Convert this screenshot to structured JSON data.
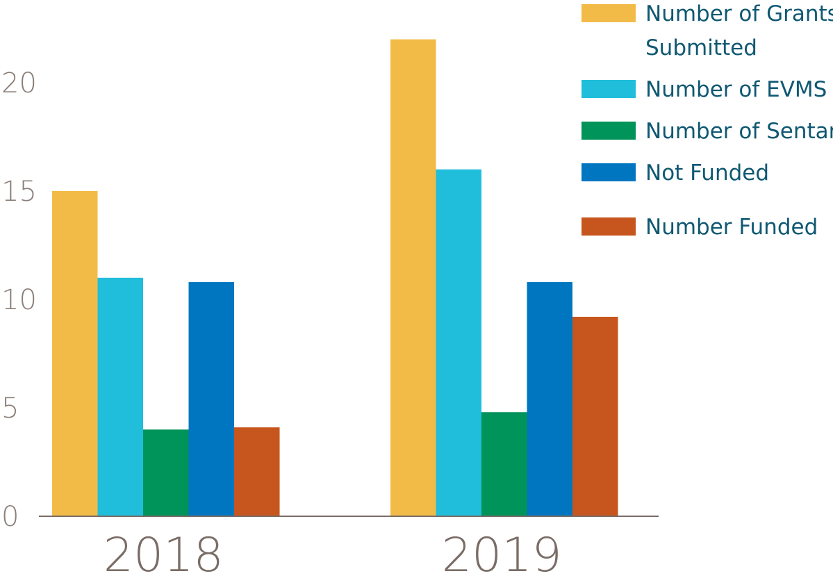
{
  "chart_data": {
    "type": "bar",
    "categories": [
      "2018",
      "2019"
    ],
    "series": [
      {
        "name": "Number of Grants Submitted",
        "values": [
          15,
          22
        ],
        "color": "#f2bb48"
      },
      {
        "name": "Number of EVMS",
        "values": [
          11,
          16
        ],
        "color": "#20bedb"
      },
      {
        "name": "Number of Sentara",
        "values": [
          4,
          4.8
        ],
        "color": "#00935a"
      },
      {
        "name": "Not Funded",
        "values": [
          10.8,
          10.8
        ],
        "color": "#0076c0"
      },
      {
        "name": "Number Funded",
        "values": [
          4.1,
          9.2
        ],
        "color": "#c6561d"
      }
    ],
    "ylim": [
      0,
      22
    ],
    "yticks": [
      "0",
      "5",
      "10",
      "15",
      "20"
    ],
    "legend": {
      "position": "top-right",
      "lines": [
        [
          "Number of Grants",
          "Submitted"
        ],
        [
          "Number of EVMS"
        ],
        [
          "Number of Sentara"
        ],
        [
          "Not Funded"
        ],
        [
          "Number Funded"
        ]
      ]
    },
    "grid": false
  }
}
